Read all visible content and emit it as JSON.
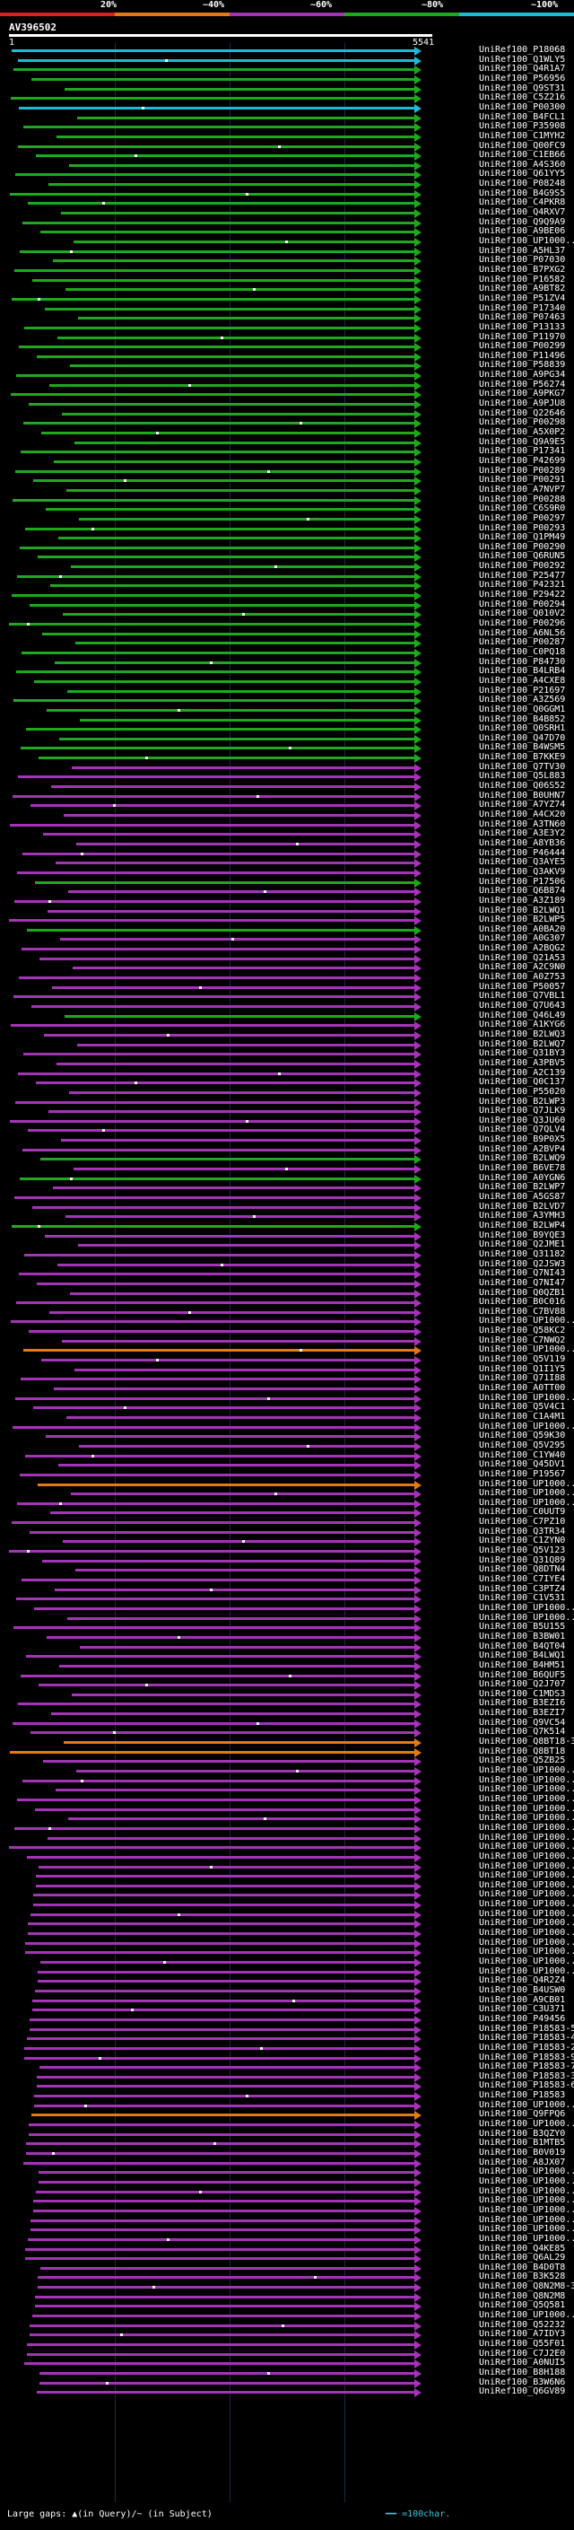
{
  "legend": {
    "items": [
      {
        "label": "20%",
        "color": "#e02020"
      },
      {
        "label": "~40%",
        "color": "#e07b17"
      },
      {
        "label": "~60%",
        "color": "#a434b6"
      },
      {
        "label": "~80%",
        "color": "#1fa81f"
      },
      {
        "label": "~100%",
        "color": "#1bbbd6"
      }
    ]
  },
  "query": {
    "name": "AV396502",
    "start": "1",
    "end": "5541"
  },
  "footer": {
    "gap_text": "Large gaps: ▲(in Query)/~ (in Subject)",
    "scale_text": "=100char."
  },
  "rows": [
    {
      "id": "UniRef100_P18068",
      "color": "#1bbbd6"
    },
    {
      "id": "UniRef100_Q1WLY5",
      "color": "#1bbbd6"
    },
    {
      "id": "UniRef100_Q4R1A7",
      "color": "#1fa81f"
    },
    {
      "id": "UniRef100_P56956",
      "color": "#1fa81f"
    },
    {
      "id": "UniRef100_Q9ST31",
      "color": "#1fa81f"
    },
    {
      "id": "UniRef100_C5Z216",
      "color": "#1fa81f"
    },
    {
      "id": "UniRef100_P00300",
      "color": "#1bbbd6"
    },
    {
      "id": "UniRef100_B4FCL1",
      "color": "#1fa81f"
    },
    {
      "id": "UniRef100_P35908",
      "color": "#1fa81f"
    },
    {
      "id": "UniRef100_C1MYH2",
      "color": "#1fa81f"
    },
    {
      "id": "UniRef100_Q00FC9",
      "color": "#1fa81f"
    },
    {
      "id": "UniRef100_C1EB66",
      "color": "#1fa81f"
    },
    {
      "id": "UniRef100_A4S360",
      "color": "#1fa81f"
    },
    {
      "id": "UniRef100_Q61YY5",
      "color": "#1fa81f"
    },
    {
      "id": "UniRef100_P08248",
      "color": "#1fa81f"
    },
    {
      "id": "UniRef100_B4G9S5",
      "color": "#1fa81f"
    },
    {
      "id": "UniRef100_C4PKR8",
      "color": "#1fa81f"
    },
    {
      "id": "UniRef100_Q4RXV7",
      "color": "#1fa81f"
    },
    {
      "id": "UniRef100_Q9Q9A9",
      "color": "#1fa81f"
    },
    {
      "id": "UniRef100_A9BE06",
      "color": "#1fa81f"
    },
    {
      "id": "UniRef100_UP1000...",
      "color": "#1fa81f"
    },
    {
      "id": "UniRef100_A5HL37",
      "color": "#1fa81f"
    },
    {
      "id": "UniRef100_P07030",
      "color": "#1fa81f"
    },
    {
      "id": "UniRef100_B7PXG2",
      "color": "#1fa81f"
    },
    {
      "id": "UniRef100_P16582",
      "color": "#1fa81f"
    },
    {
      "id": "UniRef100_A9BT82",
      "color": "#1fa81f"
    },
    {
      "id": "UniRef100_P51ZV4",
      "color": "#1fa81f"
    },
    {
      "id": "UniRef100_P17340",
      "color": "#1fa81f"
    },
    {
      "id": "UniRef100_P07463",
      "color": "#1fa81f"
    },
    {
      "id": "UniRef100_P13133",
      "color": "#1fa81f"
    },
    {
      "id": "UniRef100_P11970",
      "color": "#1fa81f"
    },
    {
      "id": "UniRef100_P00299",
      "color": "#1fa81f"
    },
    {
      "id": "UniRef100_P11496",
      "color": "#1fa81f"
    },
    {
      "id": "UniRef100_P58839",
      "color": "#1fa81f"
    },
    {
      "id": "UniRef100_A9PG34",
      "color": "#1fa81f"
    },
    {
      "id": "UniRef100_P56274",
      "color": "#1fa81f"
    },
    {
      "id": "UniRef100_A9PKG7",
      "color": "#1fa81f"
    },
    {
      "id": "UniRef100_A9PJU8",
      "color": "#1fa81f"
    },
    {
      "id": "UniRef100_Q22646",
      "color": "#1fa81f"
    },
    {
      "id": "UniRef100_P00298",
      "color": "#1fa81f"
    },
    {
      "id": "UniRef100_A5X0P2",
      "color": "#1fa81f"
    },
    {
      "id": "UniRef100_Q9A9E5",
      "color": "#1fa81f"
    },
    {
      "id": "UniRef100_P17341",
      "color": "#1fa81f"
    },
    {
      "id": "UniRef100_P42699",
      "color": "#1fa81f"
    },
    {
      "id": "UniRef100_P00289",
      "color": "#1fa81f"
    },
    {
      "id": "UniRef100_P00291",
      "color": "#1fa81f"
    },
    {
      "id": "UniRef100_A7NVP7",
      "color": "#1fa81f"
    },
    {
      "id": "UniRef100_P00288",
      "color": "#1fa81f"
    },
    {
      "id": "UniRef100_C6S9R0",
      "color": "#1fa81f"
    },
    {
      "id": "UniRef100_P00297",
      "color": "#1fa81f"
    },
    {
      "id": "UniRef100_P00293",
      "color": "#1fa81f"
    },
    {
      "id": "UniRef100_Q1PM49",
      "color": "#1fa81f"
    },
    {
      "id": "UniRef100_P00290",
      "color": "#1fa81f"
    },
    {
      "id": "UniRef100_Q6RUN5",
      "color": "#1fa81f"
    },
    {
      "id": "UniRef100_P00292",
      "color": "#1fa81f"
    },
    {
      "id": "UniRef100_P25477",
      "color": "#1fa81f"
    },
    {
      "id": "UniRef100_P42321",
      "color": "#1fa81f"
    },
    {
      "id": "UniRef100_P29422",
      "color": "#1fa81f"
    },
    {
      "id": "UniRef100_P00294",
      "color": "#1fa81f"
    },
    {
      "id": "UniRef100_Q010V2",
      "color": "#1fa81f"
    },
    {
      "id": "UniRef100_P00296",
      "color": "#1fa81f"
    },
    {
      "id": "UniRef100_A6NL56",
      "color": "#1fa81f"
    },
    {
      "id": "UniRef100_P00287",
      "color": "#1fa81f"
    },
    {
      "id": "UniRef100_C0PQ18",
      "color": "#1fa81f"
    },
    {
      "id": "UniRef100_P84730",
      "color": "#1fa81f"
    },
    {
      "id": "UniRef100_B4LRB4",
      "color": "#1fa81f"
    },
    {
      "id": "UniRef100_A4CXE8",
      "color": "#1fa81f"
    },
    {
      "id": "UniRef100_P21697",
      "color": "#1fa81f"
    },
    {
      "id": "UniRef100_A3Z569",
      "color": "#1fa81f"
    },
    {
      "id": "UniRef100_Q0GGM1",
      "color": "#1fa81f"
    },
    {
      "id": "UniRef100_B4B852",
      "color": "#1fa81f"
    },
    {
      "id": "UniRef100_Q0SRH1",
      "color": "#1fa81f"
    },
    {
      "id": "UniRef100_Q47D70",
      "color": "#1fa81f"
    },
    {
      "id": "UniRef100_B4WSM5",
      "color": "#1fa81f"
    },
    {
      "id": "UniRef100_B7KKE9",
      "color": "#1fa81f"
    },
    {
      "id": "UniRef100_Q7TV30",
      "color": "#a434b6"
    },
    {
      "id": "UniRef100_Q5L883",
      "color": "#a434b6"
    },
    {
      "id": "UniRef100_Q06S52",
      "color": "#a434b6"
    },
    {
      "id": "UniRef100_B0UHN7",
      "color": "#a434b6"
    },
    {
      "id": "UniRef100_A7YZ74",
      "color": "#a434b6"
    },
    {
      "id": "UniRef100_A4CX20",
      "color": "#a434b6"
    },
    {
      "id": "UniRef100_A3TN60",
      "color": "#a434b6"
    },
    {
      "id": "UniRef100_A3E3Y2",
      "color": "#a434b6"
    },
    {
      "id": "UniRef100_A8YB36",
      "color": "#a434b6"
    },
    {
      "id": "UniRef100_P46444",
      "color": "#a434b6"
    },
    {
      "id": "UniRef100_Q3AYE5",
      "color": "#a434b6"
    },
    {
      "id": "UniRef100_Q3AKV9",
      "color": "#a434b6"
    },
    {
      "id": "UniRef100_P17506",
      "color": "#1fa81f"
    },
    {
      "id": "UniRef100_Q6B874",
      "color": "#a434b6"
    },
    {
      "id": "UniRef100_A3Z189",
      "color": "#a434b6"
    },
    {
      "id": "UniRef100_B2LWQ1",
      "color": "#a434b6"
    },
    {
      "id": "UniRef100_B2LWP5",
      "color": "#a434b6"
    },
    {
      "id": "UniRef100_A0BA20",
      "color": "#1fa81f"
    },
    {
      "id": "UniRef100_A0G307",
      "color": "#a434b6"
    },
    {
      "id": "UniRef100_A2BQG2",
      "color": "#a434b6"
    },
    {
      "id": "UniRef100_Q21A53",
      "color": "#a434b6"
    },
    {
      "id": "UniRef100_A2C9N0",
      "color": "#a434b6"
    },
    {
      "id": "UniRef100_A0Z753",
      "color": "#a434b6"
    },
    {
      "id": "UniRef100_P50057",
      "color": "#a434b6"
    },
    {
      "id": "UniRef100_Q7VBL1",
      "color": "#a434b6"
    },
    {
      "id": "UniRef100_Q7U643",
      "color": "#a434b6"
    },
    {
      "id": "UniRef100_Q46L49",
      "color": "#1fa81f"
    },
    {
      "id": "UniRef100_A1KYG6",
      "color": "#a434b6"
    },
    {
      "id": "UniRef100_B2LWQ3",
      "color": "#a434b6"
    },
    {
      "id": "UniRef100_B2LWQ7",
      "color": "#a434b6"
    },
    {
      "id": "UniRef100_Q31BY3",
      "color": "#a434b6"
    },
    {
      "id": "UniRef100_A3PBV5",
      "color": "#a434b6"
    },
    {
      "id": "UniRef100_A2C139",
      "color": "#a434b6"
    },
    {
      "id": "UniRef100_Q0C137",
      "color": "#a434b6"
    },
    {
      "id": "UniRef100_P55020",
      "color": "#a434b6"
    },
    {
      "id": "UniRef100_B2LWP3",
      "color": "#a434b6"
    },
    {
      "id": "UniRef100_Q7JLK9",
      "color": "#a434b6"
    },
    {
      "id": "UniRef100_Q3JU60",
      "color": "#a434b6"
    },
    {
      "id": "UniRef100_Q7QLV4",
      "color": "#a434b6"
    },
    {
      "id": "UniRef100_B9P0X5",
      "color": "#a434b6"
    },
    {
      "id": "UniRef100_A2BVP4",
      "color": "#a434b6"
    },
    {
      "id": "UniRef100_B2LWQ9",
      "color": "#1fa81f"
    },
    {
      "id": "UniRef100_B6VE78",
      "color": "#a434b6"
    },
    {
      "id": "UniRef100_A0YGN6",
      "color": "#1fa81f"
    },
    {
      "id": "UniRef100_B2LWP7",
      "color": "#a434b6"
    },
    {
      "id": "UniRef100_A5GS87",
      "color": "#a434b6"
    },
    {
      "id": "UniRef100_B2LVD7",
      "color": "#a434b6"
    },
    {
      "id": "UniRef100_A3YMH3",
      "color": "#a434b6"
    },
    {
      "id": "UniRef100_B2LWP4",
      "color": "#1fa81f"
    },
    {
      "id": "UniRef100_B9YQE3",
      "color": "#a434b6"
    },
    {
      "id": "UniRef100_Q2JME1",
      "color": "#a434b6"
    },
    {
      "id": "UniRef100_Q31182",
      "color": "#a434b6"
    },
    {
      "id": "UniRef100_Q2JSW3",
      "color": "#a434b6"
    },
    {
      "id": "UniRef100_Q7NI43",
      "color": "#a434b6"
    },
    {
      "id": "UniRef100_Q7NI47",
      "color": "#a434b6"
    },
    {
      "id": "UniRef100_Q0QZB1",
      "color": "#a434b6"
    },
    {
      "id": "UniRef100_B0C016",
      "color": "#a434b6"
    },
    {
      "id": "UniRef100_C7BV88",
      "color": "#a434b6"
    },
    {
      "id": "UniRef100_UP1000...",
      "color": "#a434b6"
    },
    {
      "id": "UniRef100_Q58KC2",
      "color": "#a434b6"
    },
    {
      "id": "UniRef100_C7NWQ2",
      "color": "#a434b6"
    },
    {
      "id": "UniRef100_UP1000...",
      "color": "#e07b17"
    },
    {
      "id": "UniRef100_Q5V119",
      "color": "#a434b6"
    },
    {
      "id": "UniRef100_Q1I1Y5",
      "color": "#a434b6"
    },
    {
      "id": "UniRef100_Q71I88",
      "color": "#a434b6"
    },
    {
      "id": "UniRef100_A0TT00",
      "color": "#a434b6"
    },
    {
      "id": "UniRef100_UP1000...",
      "color": "#a434b6"
    },
    {
      "id": "UniRef100_Q5V4C1",
      "color": "#a434b6"
    },
    {
      "id": "UniRef100_C1A4M1",
      "color": "#a434b6"
    },
    {
      "id": "UniRef100_UP1000...",
      "color": "#a434b6"
    },
    {
      "id": "UniRef100_Q59K30",
      "color": "#a434b6"
    },
    {
      "id": "UniRef100_Q5V295",
      "color": "#a434b6"
    },
    {
      "id": "UniRef100_C1YW40",
      "color": "#a434b6"
    },
    {
      "id": "UniRef100_Q45DV1",
      "color": "#a434b6"
    },
    {
      "id": "UniRef100_P19567",
      "color": "#a434b6"
    },
    {
      "id": "UniRef100_UP1000...",
      "color": "#e07b17"
    },
    {
      "id": "UniRef100_UP1000...",
      "color": "#a434b6"
    },
    {
      "id": "UniRef100_UP1000...",
      "color": "#a434b6"
    },
    {
      "id": "UniRef100_C0UUT9",
      "color": "#a434b6"
    },
    {
      "id": "UniRef100_C7PZ10",
      "color": "#a434b6"
    },
    {
      "id": "UniRef100_Q3TR34",
      "color": "#a434b6"
    },
    {
      "id": "UniRef100_C1ZYN0",
      "color": "#a434b6"
    },
    {
      "id": "UniRef100_Q5V123",
      "color": "#a434b6"
    },
    {
      "id": "UniRef100_Q31Q89",
      "color": "#a434b6"
    },
    {
      "id": "UniRef100_Q8DTN4",
      "color": "#a434b6"
    },
    {
      "id": "UniRef100_C7IYE4",
      "color": "#a434b6"
    },
    {
      "id": "UniRef100_C3PTZ4",
      "color": "#a434b6"
    },
    {
      "id": "UniRef100_C1V531",
      "color": "#a434b6"
    },
    {
      "id": "UniRef100_UP1000...",
      "color": "#a434b6"
    },
    {
      "id": "UniRef100_UP1000...",
      "color": "#a434b6"
    },
    {
      "id": "UniRef100_B5U155",
      "color": "#a434b6"
    },
    {
      "id": "UniRef100_B3BW01",
      "color": "#a434b6"
    },
    {
      "id": "UniRef100_B4QT04",
      "color": "#a434b6"
    },
    {
      "id": "UniRef100_B4LWQ1",
      "color": "#a434b6"
    },
    {
      "id": "UniRef100_B4HM51",
      "color": "#a434b6"
    },
    {
      "id": "UniRef100_B6QUF5",
      "color": "#a434b6"
    },
    {
      "id": "UniRef100_Q2J707",
      "color": "#a434b6"
    },
    {
      "id": "UniRef100_C1MDS3",
      "color": "#a434b6"
    },
    {
      "id": "UniRef100_B3EZI6",
      "color": "#a434b6"
    },
    {
      "id": "UniRef100_B3EZI7",
      "color": "#a434b6"
    },
    {
      "id": "UniRef100_Q9VC54",
      "color": "#a434b6"
    },
    {
      "id": "UniRef100_Q7K514",
      "color": "#a434b6"
    },
    {
      "id": "UniRef100_Q8BT18-3",
      "color": "#e07b17"
    },
    {
      "id": "UniRef100_Q8BT18",
      "color": "#e07b17"
    },
    {
      "id": "UniRef100_Q5ZB25",
      "color": "#a434b6"
    },
    {
      "id": "UniRef100_UP1000...",
      "color": "#a434b6"
    },
    {
      "id": "UniRef100_UP1000...",
      "color": "#a434b6"
    },
    {
      "id": "UniRef100_UP1000...",
      "color": "#a434b6"
    },
    {
      "id": "UniRef100_UP1000...",
      "color": "#a434b6"
    },
    {
      "id": "UniRef100_UP1000...",
      "color": "#a434b6"
    },
    {
      "id": "UniRef100_UP1000...",
      "color": "#a434b6"
    },
    {
      "id": "UniRef100_UP1000...",
      "color": "#a434b6"
    },
    {
      "id": "UniRef100_UP1000...",
      "color": "#a434b6"
    },
    {
      "id": "UniRef100_UP1000...",
      "color": "#a434b6"
    },
    {
      "id": "UniRef100_UP1000...",
      "color": "#a434b6"
    },
    {
      "id": "UniRef100_UP1000...",
      "color": "#a434b6"
    },
    {
      "id": "UniRef100_UP1000...",
      "color": "#a434b6"
    },
    {
      "id": "UniRef100_UP1000...",
      "color": "#a434b6"
    },
    {
      "id": "UniRef100_UP1000...",
      "color": "#a434b6"
    },
    {
      "id": "UniRef100_UP1000...",
      "color": "#a434b6"
    },
    {
      "id": "UniRef100_UP1000...",
      "color": "#a434b6"
    },
    {
      "id": "UniRef100_UP1000...",
      "color": "#a434b6"
    },
    {
      "id": "UniRef100_UP1000...",
      "color": "#a434b6"
    },
    {
      "id": "UniRef100_UP1000...",
      "color": "#a434b6"
    },
    {
      "id": "UniRef100_UP1000...",
      "color": "#a434b6"
    },
    {
      "id": "UniRef100_UP1000...",
      "color": "#a434b6"
    },
    {
      "id": "UniRef100_UP1000...",
      "color": "#a434b6"
    },
    {
      "id": "UniRef100_Q4R2Z4",
      "color": "#a434b6"
    },
    {
      "id": "UniRef100_B4USW0",
      "color": "#a434b6"
    },
    {
      "id": "UniRef100_A9CB01",
      "color": "#a434b6"
    },
    {
      "id": "UniRef100_C3U371",
      "color": "#a434b6"
    },
    {
      "id": "UniRef100_P49456",
      "color": "#a434b6"
    },
    {
      "id": "UniRef100_P18583-5",
      "color": "#a434b6"
    },
    {
      "id": "UniRef100_P18583-4",
      "color": "#a434b6"
    },
    {
      "id": "UniRef100_P18583-2",
      "color": "#a434b6"
    },
    {
      "id": "UniRef100_P18583-9",
      "color": "#a434b6"
    },
    {
      "id": "UniRef100_P18583-7",
      "color": "#a434b6"
    },
    {
      "id": "UniRef100_P18583-3",
      "color": "#a434b6"
    },
    {
      "id": "UniRef100_P18583-6",
      "color": "#a434b6"
    },
    {
      "id": "UniRef100_P18583",
      "color": "#a434b6"
    },
    {
      "id": "UniRef100_UP1000...",
      "color": "#a434b6"
    },
    {
      "id": "UniRef100_Q9FPQ6",
      "color": "#e07b17"
    },
    {
      "id": "UniRef100_UP1000...",
      "color": "#a434b6"
    },
    {
      "id": "UniRef100_B3QZY0",
      "color": "#a434b6"
    },
    {
      "id": "UniRef100_B1MTB5",
      "color": "#a434b6"
    },
    {
      "id": "UniRef100_B0V019",
      "color": "#a434b6"
    },
    {
      "id": "UniRef100_A8JX07",
      "color": "#a434b6"
    },
    {
      "id": "UniRef100_UP1000...",
      "color": "#a434b6"
    },
    {
      "id": "UniRef100_UP1000...",
      "color": "#a434b6"
    },
    {
      "id": "UniRef100_UP1000...",
      "color": "#a434b6"
    },
    {
      "id": "UniRef100_UP1000...",
      "color": "#a434b6"
    },
    {
      "id": "UniRef100_UP1000...",
      "color": "#a434b6"
    },
    {
      "id": "UniRef100_UP1000...",
      "color": "#a434b6"
    },
    {
      "id": "UniRef100_UP1000...",
      "color": "#a434b6"
    },
    {
      "id": "UniRef100_UP1000...",
      "color": "#a434b6"
    },
    {
      "id": "UniRef100_Q4KE85",
      "color": "#a434b6"
    },
    {
      "id": "UniRef100_Q6AL29",
      "color": "#a434b6"
    },
    {
      "id": "UniRef100_B4D0T8",
      "color": "#a434b6"
    },
    {
      "id": "UniRef100_B3K528",
      "color": "#a434b6"
    },
    {
      "id": "UniRef100_Q8N2M8-3",
      "color": "#a434b6"
    },
    {
      "id": "UniRef100_Q8N2M8",
      "color": "#a434b6"
    },
    {
      "id": "UniRef100_Q5Q581",
      "color": "#a434b6"
    },
    {
      "id": "UniRef100_UP1000...",
      "color": "#a434b6"
    },
    {
      "id": "UniRef100_Q52232",
      "color": "#a434b6"
    },
    {
      "id": "UniRef100_A7IDY3",
      "color": "#a434b6"
    },
    {
      "id": "UniRef100_Q55F01",
      "color": "#a434b6"
    },
    {
      "id": "UniRef100_C7J2E0",
      "color": "#a434b6"
    },
    {
      "id": "UniRef100_A0NUI5",
      "color": "#a434b6"
    },
    {
      "id": "UniRef100_B8H188",
      "color": "#a434b6"
    },
    {
      "id": "UniRef100_B3W6N6",
      "color": "#a434b6"
    },
    {
      "id": "UniRef100_Q6GV89",
      "color": "#a434b6"
    }
  ]
}
